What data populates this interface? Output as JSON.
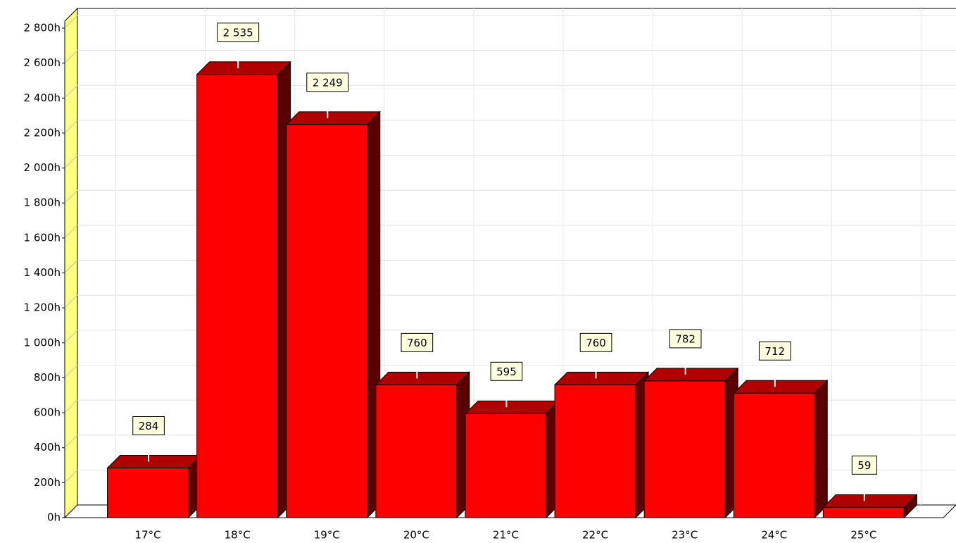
{
  "chart_data": {
    "type": "bar3d",
    "categories": [
      "17°C",
      "18°C",
      "19°C",
      "20°C",
      "21°C",
      "22°C",
      "23°C",
      "24°C",
      "25°C"
    ],
    "values": [
      284,
      2535,
      2249,
      760,
      595,
      760,
      782,
      712,
      59
    ],
    "value_labels": [
      "284",
      "2 535",
      "2 249",
      "760",
      "595",
      "760",
      "782",
      "712",
      "59"
    ],
    "color": "#ff0000",
    "ylim": [
      0,
      2800
    ],
    "yticks": [
      {
        "value": 0,
        "label": "0h"
      },
      {
        "value": 200,
        "label": "200h"
      },
      {
        "value": 400,
        "label": "400h"
      },
      {
        "value": 600,
        "label": "600h"
      },
      {
        "value": 800,
        "label": "800h"
      },
      {
        "value": 1000,
        "label": "1 000h"
      },
      {
        "value": 1200,
        "label": "1 200h"
      },
      {
        "value": 1400,
        "label": "1 400h"
      },
      {
        "value": 1600,
        "label": "1 600h"
      },
      {
        "value": 1800,
        "label": "1 800h"
      },
      {
        "value": 2000,
        "label": "2 000h"
      },
      {
        "value": 2200,
        "label": "2 200h"
      },
      {
        "value": 2400,
        "label": "2 400h"
      },
      {
        "value": 2600,
        "label": "2 600h"
      },
      {
        "value": 2800,
        "label": "2 800h"
      }
    ],
    "grid": true
  }
}
